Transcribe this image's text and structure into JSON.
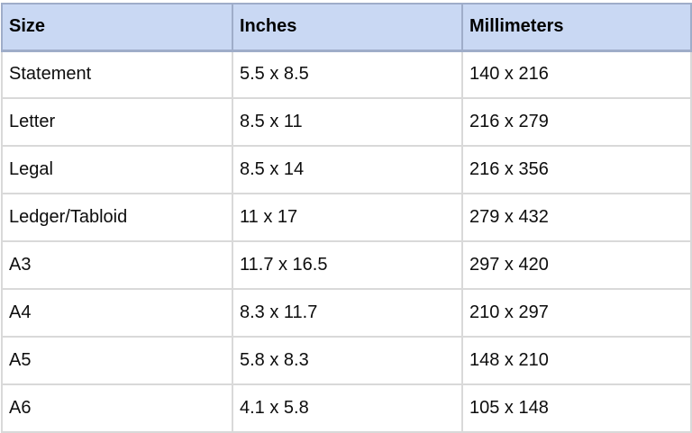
{
  "table": {
    "name": "paper-size-reference-table",
    "columns": [
      "Size",
      "Inches",
      "Millimeters"
    ],
    "rows": [
      [
        "Statement",
        "5.5 x 8.5",
        "140 x 216"
      ],
      [
        "Letter",
        "8.5 x 11",
        "216 x 279"
      ],
      [
        "Legal",
        "8.5 x 14",
        "216 x 356"
      ],
      [
        "Ledger/Tabloid",
        "11 x 17",
        "279 x 432"
      ],
      [
        "A3",
        "11.7 x 16.5",
        "297 x 420"
      ],
      [
        "A4",
        "8.3 x 11.7",
        "210 x 297"
      ],
      [
        "A5",
        "5.8 x 8.3",
        "148 x 210"
      ],
      [
        "A6",
        "4.1 x 5.8",
        "105 x 148"
      ]
    ],
    "colors": {
      "header_bg": "#c9d8f3",
      "header_border": "#9fadc9",
      "cell_border": "#d9d9d9",
      "text": "#0d0d0d",
      "page_bg": "#ffffff"
    }
  }
}
